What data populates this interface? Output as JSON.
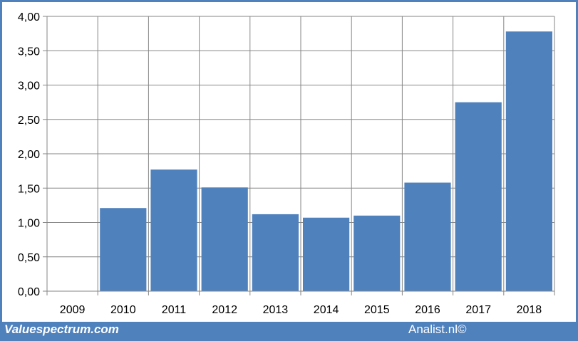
{
  "chart_data": {
    "type": "bar",
    "title": "",
    "xlabel": "",
    "ylabel": "",
    "categories": [
      "2009",
      "2010",
      "2011",
      "2012",
      "2013",
      "2014",
      "2015",
      "2016",
      "2017",
      "2018"
    ],
    "values": [
      null,
      1.21,
      1.77,
      1.51,
      1.12,
      1.07,
      1.1,
      1.58,
      2.75,
      3.78
    ],
    "ylim": [
      0,
      4
    ],
    "yticks": [
      "0,00",
      "0,50",
      "1,00",
      "1,50",
      "2,00",
      "2,50",
      "3,00",
      "3,50",
      "4,00"
    ],
    "grid": true,
    "legend": "none",
    "colors": {
      "bar": "#4f81bd",
      "grid": "#868686",
      "frame": "#4f81bd"
    }
  },
  "footer": {
    "left_brand": "Valuespectrum.com",
    "right_credit": "Analist.nl©"
  }
}
